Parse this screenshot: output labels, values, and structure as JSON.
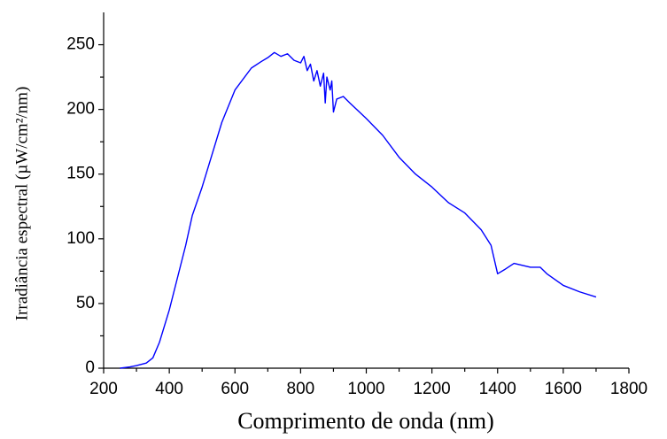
{
  "chart_data": {
    "type": "line",
    "x_label": "Comprimento de onda (nm)",
    "y_label": "Irradiância espectral (µW/cm²/nm)",
    "x": [
      250,
      280,
      300,
      330,
      350,
      370,
      400,
      430,
      450,
      470,
      500,
      530,
      560,
      600,
      650,
      680,
      700,
      720,
      740,
      760,
      780,
      800,
      810,
      820,
      830,
      840,
      850,
      860,
      870,
      875,
      880,
      890,
      895,
      900,
      910,
      930,
      950,
      1000,
      1050,
      1100,
      1150,
      1200,
      1250,
      1300,
      1350,
      1380,
      1400,
      1420,
      1450,
      1500,
      1530,
      1550,
      1600,
      1650,
      1700
    ],
    "values": [
      0,
      1,
      2,
      4,
      8,
      20,
      45,
      75,
      95,
      118,
      140,
      165,
      190,
      215,
      232,
      237,
      240,
      244,
      241,
      243,
      238,
      236,
      241,
      230,
      235,
      222,
      230,
      218,
      228,
      205,
      225,
      215,
      222,
      198,
      208,
      210,
      205,
      193,
      180,
      163,
      150,
      140,
      128,
      120,
      107,
      95,
      73,
      76,
      81,
      78,
      78,
      73,
      64,
      59,
      55
    ],
    "color": "#0000ff",
    "xlim": [
      200,
      1800
    ],
    "xticks": [
      200,
      400,
      600,
      800,
      1000,
      1200,
      1400,
      1600,
      1800
    ],
    "ylim": [
      0,
      275
    ],
    "yticks": [
      0,
      50,
      100,
      150,
      200,
      250
    ]
  }
}
